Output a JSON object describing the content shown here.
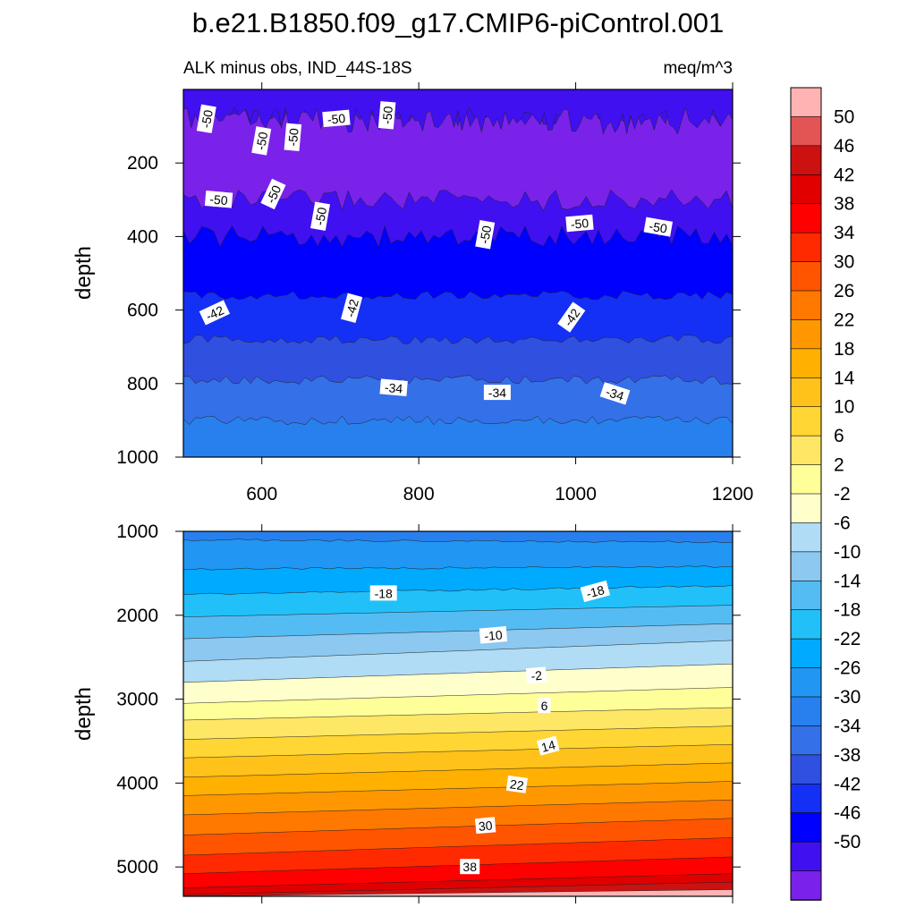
{
  "chart_data": {
    "type": "heatmap",
    "title": "b.e21.B1850.f09_g17.CMIP6-piControl.001",
    "subtitle_left": "ALK minus obs, IND_44S-18S",
    "subtitle_right": "meq/m^3",
    "xlim": [
      500,
      1200
    ],
    "x_ticks": [
      "600",
      "800",
      "1000",
      "1200"
    ],
    "upper_panel": {
      "ylabel": "depth",
      "ylim": [
        1000,
        0
      ],
      "y_ticks": [
        "200",
        "400",
        "600",
        "800",
        "1000"
      ],
      "bands": [
        {
          "top": 0,
          "bottom": 60,
          "level": -50
        },
        {
          "top": 60,
          "bottom": 300,
          "level": -54
        },
        {
          "top": 300,
          "bottom": 400,
          "level": -50
        },
        {
          "top": 400,
          "bottom": 560,
          "level": -46
        },
        {
          "top": 560,
          "bottom": 680,
          "level": -42
        },
        {
          "top": 680,
          "bottom": 790,
          "level": -38
        },
        {
          "top": 790,
          "bottom": 900,
          "level": -34
        },
        {
          "top": 900,
          "bottom": 1000,
          "level": -30
        }
      ],
      "contour_labels": [
        {
          "x": 530,
          "y": 80,
          "text": "-50",
          "rot": -80
        },
        {
          "x": 695,
          "y": 80,
          "text": "-50",
          "rot": -5
        },
        {
          "x": 760,
          "y": 70,
          "text": "-50",
          "rot": -85
        },
        {
          "x": 600,
          "y": 140,
          "text": "-50",
          "rot": -80
        },
        {
          "x": 640,
          "y": 130,
          "text": "-50",
          "rot": -85
        },
        {
          "x": 545,
          "y": 300,
          "text": "-50",
          "rot": 5
        },
        {
          "x": 615,
          "y": 285,
          "text": "-50",
          "rot": -65
        },
        {
          "x": 675,
          "y": 345,
          "text": "-50",
          "rot": -80
        },
        {
          "x": 885,
          "y": 395,
          "text": "-50",
          "rot": -80
        },
        {
          "x": 1005,
          "y": 365,
          "text": "-50",
          "rot": -5
        },
        {
          "x": 1105,
          "y": 375,
          "text": "-50",
          "rot": 10
        },
        {
          "x": 540,
          "y": 608,
          "text": "-42",
          "rot": -25
        },
        {
          "x": 715,
          "y": 595,
          "text": "-42",
          "rot": -75
        },
        {
          "x": 995,
          "y": 620,
          "text": "-42",
          "rot": -55
        },
        {
          "x": 768,
          "y": 812,
          "text": "-34",
          "rot": 5
        },
        {
          "x": 900,
          "y": 825,
          "text": "-34",
          "rot": 0
        },
        {
          "x": 1050,
          "y": 828,
          "text": "-34",
          "rot": 18
        }
      ]
    },
    "lower_panel": {
      "ylabel": "depth",
      "ylim": [
        5350,
        1000
      ],
      "y_ticks": [
        "1000",
        "2000",
        "3000",
        "4000",
        "5000"
      ],
      "bands": [
        {
          "top_left": 1000,
          "top_right": 1000,
          "level": -30
        },
        {
          "top_left": 1100,
          "top_right": 1130,
          "level": -26
        },
        {
          "top_left": 1450,
          "top_right": 1420,
          "level": -22
        },
        {
          "top_left": 1750,
          "top_right": 1650,
          "level": -18
        },
        {
          "top_left": 2020,
          "top_right": 1880,
          "level": -14
        },
        {
          "top_left": 2280,
          "top_right": 2100,
          "level": -10
        },
        {
          "top_left": 2550,
          "top_right": 2300,
          "level": -6
        },
        {
          "top_left": 2800,
          "top_right": 2580,
          "level": -2
        },
        {
          "top_left": 3050,
          "top_right": 2860,
          "level": 2
        },
        {
          "top_left": 3250,
          "top_right": 3100,
          "level": 6
        },
        {
          "top_left": 3480,
          "top_right": 3320,
          "level": 10
        },
        {
          "top_left": 3700,
          "top_right": 3540,
          "level": 14
        },
        {
          "top_left": 3930,
          "top_right": 3760,
          "level": 18
        },
        {
          "top_left": 4150,
          "top_right": 3980,
          "level": 22
        },
        {
          "top_left": 4380,
          "top_right": 4200,
          "level": 26
        },
        {
          "top_left": 4620,
          "top_right": 4420,
          "level": 30
        },
        {
          "top_left": 4860,
          "top_right": 4650,
          "level": 34
        },
        {
          "top_left": 5080,
          "top_right": 4880,
          "level": 38
        },
        {
          "top_left": 5250,
          "top_right": 5080,
          "level": 42
        },
        {
          "top_left": 5330,
          "top_right": 5180,
          "level": 46
        },
        {
          "top_left": 5350,
          "top_right": 5270,
          "level": 50
        }
      ],
      "contour_labels": [
        {
          "x": 755,
          "y": 1740,
          "text": "-18",
          "rot": 0
        },
        {
          "x": 1025,
          "y": 1720,
          "text": "-18",
          "rot": -15
        },
        {
          "x": 895,
          "y": 2240,
          "text": "-10",
          "rot": -5
        },
        {
          "x": 950,
          "y": 2720,
          "text": "-2",
          "rot": -5
        },
        {
          "x": 960,
          "y": 3080,
          "text": "6",
          "rot": 0
        },
        {
          "x": 965,
          "y": 3560,
          "text": "14",
          "rot": -15
        },
        {
          "x": 925,
          "y": 4020,
          "text": "22",
          "rot": 8
        },
        {
          "x": 885,
          "y": 4510,
          "text": "30",
          "rot": -5
        },
        {
          "x": 865,
          "y": 5000,
          "text": "38",
          "rot": 0
        }
      ]
    },
    "colorbar": {
      "labels": [
        "50",
        "46",
        "42",
        "38",
        "34",
        "30",
        "26",
        "22",
        "18",
        "14",
        "10",
        "6",
        "2",
        "-2",
        "-6",
        "-10",
        "-14",
        "-18",
        "-22",
        "-26",
        "-30",
        "-34",
        "-38",
        "-42",
        "-46",
        "-50"
      ],
      "colors": [
        "#ffb3b3",
        "#e35454",
        "#cc1111",
        "#e00000",
        "#ff0000",
        "#ff2a00",
        "#ff5500",
        "#ff7800",
        "#ff9800",
        "#ffb000",
        "#ffc21a",
        "#ffd633",
        "#ffe766",
        "#ffff99",
        "#ffffcc",
        "#b0dcf5",
        "#8cc8f0",
        "#55bcf3",
        "#22c0f8",
        "#00aaff",
        "#2196f3",
        "#2880ee",
        "#3470e8",
        "#3050e0",
        "#1530f5",
        "#0000ff",
        "#4010f0",
        "#7a22ea"
      ]
    },
    "level_colors": {
      "-54": "#7a22ea",
      "-50": "#4010f0",
      "-46": "#0000ff",
      "-42": "#1530f5",
      "-38": "#3050e0",
      "-34": "#3470e8",
      "-30": "#2880ee",
      "-26": "#2196f3",
      "-22": "#00aaff",
      "-18": "#22c0f8",
      "-14": "#55bcf3",
      "-10": "#8cc8f0",
      "-6": "#b0dcf5",
      "-2": "#ffffcc",
      "2": "#ffff99",
      "6": "#ffe766",
      "10": "#ffd633",
      "14": "#ffc21a",
      "18": "#ffb000",
      "22": "#ff9800",
      "26": "#ff7800",
      "30": "#ff5500",
      "34": "#ff2a00",
      "38": "#ff0000",
      "42": "#e00000",
      "46": "#cc1111",
      "50": "#e35454"
    }
  }
}
